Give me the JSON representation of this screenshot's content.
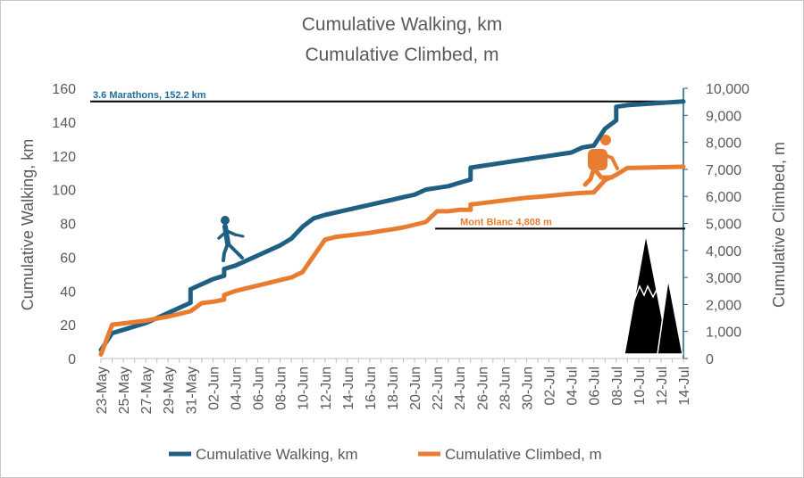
{
  "chart_data": {
    "type": "line",
    "title": "Cumulative Walking, km",
    "subtitle": "Cumulative Climbed, m",
    "ylabel_left": "Cumulative Walking, km",
    "ylabel_right": "Cumulative Climbed, m",
    "ylim_left": [
      0,
      160
    ],
    "ylim_right": [
      0,
      10000
    ],
    "yticks_left": [
      "0",
      "20",
      "40",
      "60",
      "80",
      "100",
      "120",
      "140",
      "160"
    ],
    "yticks_right": [
      "0",
      "1,000",
      "2,000",
      "3,000",
      "4,000",
      "5,000",
      "6,000",
      "7,000",
      "8,000",
      "9,000",
      "10,000"
    ],
    "x_range": [
      "2024-05-23",
      "2024-07-14"
    ],
    "xtick_labels": [
      "23-May",
      "25-May",
      "27-May",
      "29-May",
      "31-May",
      "02-Jun",
      "04-Jun",
      "06-Jun",
      "08-Jun",
      "10-Jun",
      "12-Jun",
      "14-Jun",
      "16-Jun",
      "18-Jun",
      "20-Jun",
      "22-Jun",
      "24-Jun",
      "26-Jun",
      "28-Jun",
      "30-Jun",
      "02-Jul",
      "04-Jul",
      "06-Jul",
      "08-Jul",
      "10-Jul",
      "12-Jul",
      "14-Jul"
    ],
    "grid": false,
    "legend_position": "bottom",
    "series": [
      {
        "name": "Cumulative Walking, km",
        "axis": "left",
        "color": "#1f5f82",
        "points": [
          [
            "2024-05-23",
            5
          ],
          [
            "2024-05-24",
            15
          ],
          [
            "2024-05-25",
            17
          ],
          [
            "2024-05-26",
            19
          ],
          [
            "2024-05-27",
            21
          ],
          [
            "2024-05-28",
            24
          ],
          [
            "2024-05-29",
            27
          ],
          [
            "2024-05-30",
            30
          ],
          [
            "2024-05-31",
            33
          ],
          [
            "2024-05-31",
            41
          ],
          [
            "2024-06-01",
            44
          ],
          [
            "2024-06-02",
            47
          ],
          [
            "2024-06-03",
            49
          ],
          [
            "2024-06-03",
            53
          ],
          [
            "2024-06-04",
            55
          ],
          [
            "2024-06-05",
            58
          ],
          [
            "2024-06-06",
            61
          ],
          [
            "2024-06-07",
            64
          ],
          [
            "2024-06-08",
            67
          ],
          [
            "2024-06-09",
            71
          ],
          [
            "2024-06-10",
            78
          ],
          [
            "2024-06-11",
            83
          ],
          [
            "2024-06-12",
            85
          ],
          [
            "2024-06-13",
            86.5
          ],
          [
            "2024-06-14",
            88
          ],
          [
            "2024-06-15",
            89.5
          ],
          [
            "2024-06-16",
            91
          ],
          [
            "2024-06-17",
            92.5
          ],
          [
            "2024-06-18",
            94
          ],
          [
            "2024-06-19",
            95.5
          ],
          [
            "2024-06-20",
            97
          ],
          [
            "2024-06-21",
            100
          ],
          [
            "2024-06-22",
            101
          ],
          [
            "2024-06-23",
            102
          ],
          [
            "2024-06-24",
            104
          ],
          [
            "2024-06-25",
            106
          ],
          [
            "2024-06-25",
            113
          ],
          [
            "2024-06-26",
            114
          ],
          [
            "2024-06-27",
            115
          ],
          [
            "2024-06-28",
            116
          ],
          [
            "2024-06-29",
            117
          ],
          [
            "2024-06-30",
            118
          ],
          [
            "2024-07-01",
            119
          ],
          [
            "2024-07-02",
            120
          ],
          [
            "2024-07-03",
            121
          ],
          [
            "2024-07-04",
            122
          ],
          [
            "2024-07-05",
            125
          ],
          [
            "2024-07-06",
            126
          ],
          [
            "2024-07-07",
            136
          ],
          [
            "2024-07-08",
            141
          ],
          [
            "2024-07-08",
            149
          ],
          [
            "2024-07-09",
            150
          ],
          [
            "2024-07-14",
            152.2
          ]
        ]
      },
      {
        "name": "Cumulative Climbed, m",
        "axis": "right",
        "color": "#e87d32",
        "points": [
          [
            "2024-05-23",
            150
          ],
          [
            "2024-05-24",
            1250
          ],
          [
            "2024-05-25",
            1300
          ],
          [
            "2024-05-26",
            1350
          ],
          [
            "2024-05-27",
            1400
          ],
          [
            "2024-05-28",
            1480
          ],
          [
            "2024-05-29",
            1550
          ],
          [
            "2024-05-30",
            1650
          ],
          [
            "2024-05-31",
            1750
          ],
          [
            "2024-06-01",
            2050
          ],
          [
            "2024-06-02",
            2100
          ],
          [
            "2024-06-03",
            2180
          ],
          [
            "2024-06-03",
            2350
          ],
          [
            "2024-06-04",
            2500
          ],
          [
            "2024-06-05",
            2600
          ],
          [
            "2024-06-06",
            2700
          ],
          [
            "2024-06-07",
            2800
          ],
          [
            "2024-06-08",
            2900
          ],
          [
            "2024-06-09",
            3000
          ],
          [
            "2024-06-10",
            3200
          ],
          [
            "2024-06-11",
            3800
          ],
          [
            "2024-06-12",
            4400
          ],
          [
            "2024-06-13",
            4500
          ],
          [
            "2024-06-14",
            4550
          ],
          [
            "2024-06-15",
            4600
          ],
          [
            "2024-06-16",
            4650
          ],
          [
            "2024-06-17",
            4720
          ],
          [
            "2024-06-18",
            4780
          ],
          [
            "2024-06-19",
            4850
          ],
          [
            "2024-06-20",
            4950
          ],
          [
            "2024-06-21",
            5050
          ],
          [
            "2024-06-22",
            5450
          ],
          [
            "2024-06-23",
            5450
          ],
          [
            "2024-06-24",
            5500
          ],
          [
            "2024-06-25",
            5500
          ],
          [
            "2024-06-25",
            5700
          ],
          [
            "2024-06-26",
            5750
          ],
          [
            "2024-06-27",
            5800
          ],
          [
            "2024-06-28",
            5850
          ],
          [
            "2024-06-29",
            5900
          ],
          [
            "2024-06-30",
            5950
          ],
          [
            "2024-07-01",
            5980
          ],
          [
            "2024-07-02",
            6020
          ],
          [
            "2024-07-03",
            6060
          ],
          [
            "2024-07-04",
            6100
          ],
          [
            "2024-07-05",
            6130
          ],
          [
            "2024-07-06",
            6150
          ],
          [
            "2024-07-07",
            6600
          ],
          [
            "2024-07-08",
            6800
          ],
          [
            "2024-07-09",
            7050
          ],
          [
            "2024-07-14",
            7100
          ]
        ]
      }
    ],
    "annotations": [
      {
        "text": "3.6 Marathons, 152.2 km",
        "axis": "left",
        "value": 152.2,
        "x_start": "2024-05-23",
        "x_end": "2024-07-14",
        "color": "#1f6e9e"
      },
      {
        "text": "Mont Blanc 4,808 m",
        "axis": "right",
        "value": 4808,
        "x_start": "2024-06-22",
        "x_end": "2024-07-14",
        "color": "#e87d32"
      }
    ]
  },
  "icons": {
    "walker": "walker-icon",
    "climber": "climber-icon",
    "mountain": "mountain-icon"
  }
}
